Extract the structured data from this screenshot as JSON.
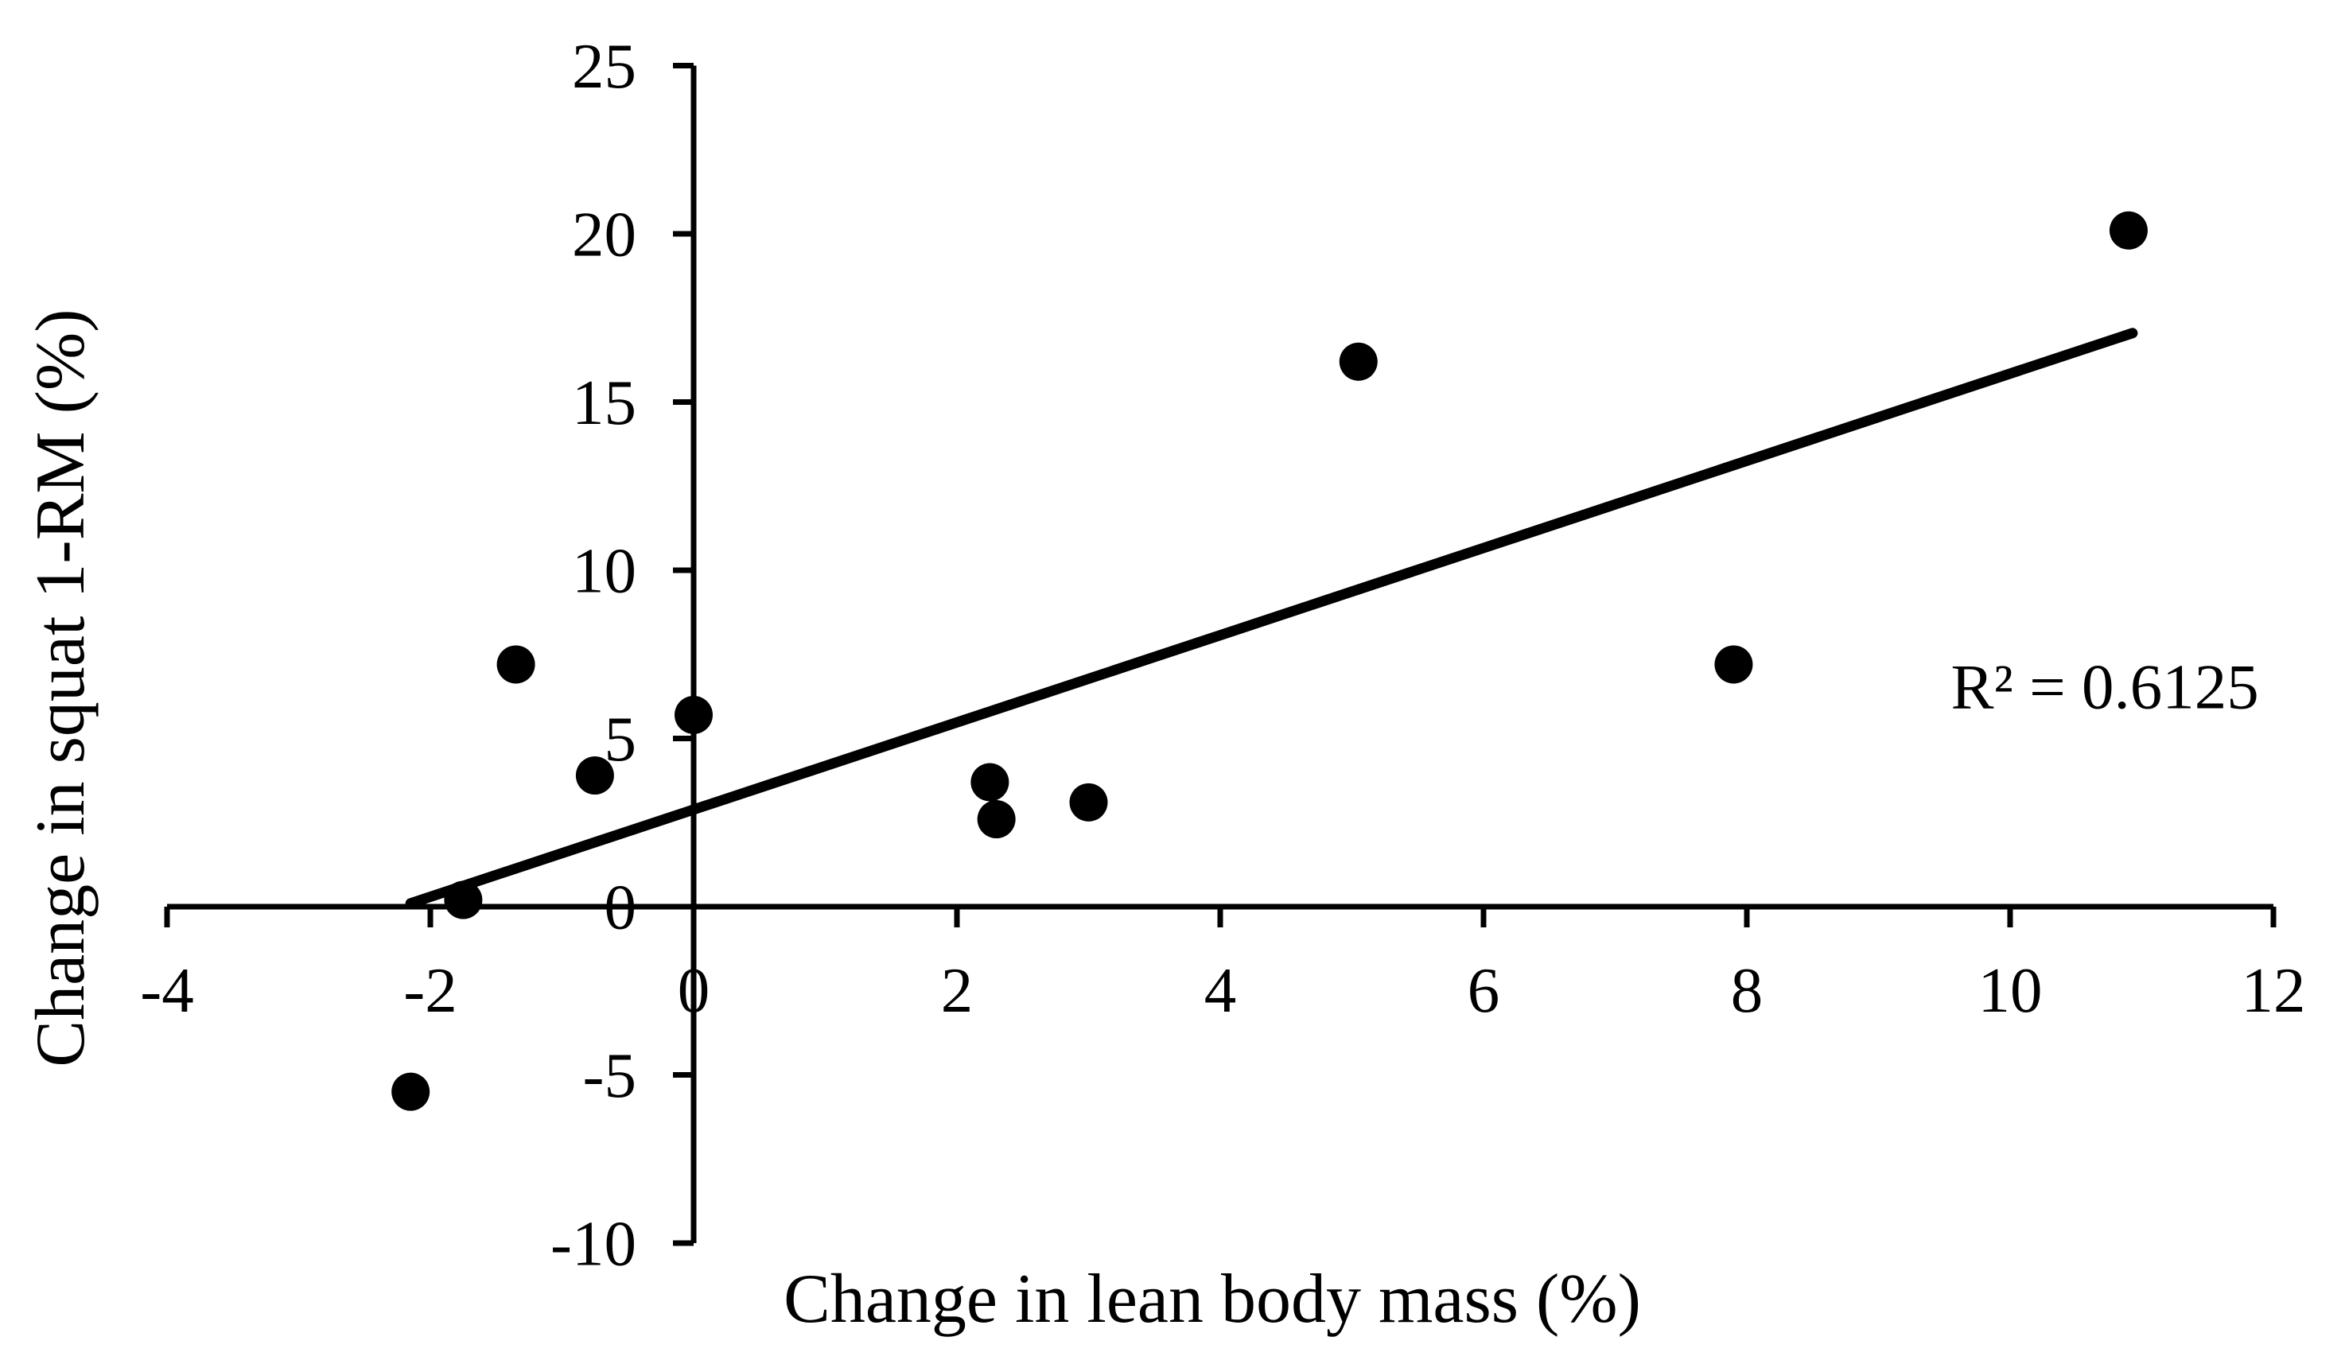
{
  "figure": {
    "background": "#ffffff",
    "ink_color": "#000000"
  },
  "chart_data": {
    "type": "scatter",
    "title": "",
    "xlabel": "Change in lean body mass (%)",
    "ylabel": "Change in squat 1-RM (%)",
    "xlim": [
      -4,
      12
    ],
    "ylim": [
      -10,
      25
    ],
    "xticks": [
      -4,
      -2,
      0,
      2,
      4,
      6,
      8,
      10,
      12
    ],
    "yticks": [
      -10,
      -5,
      0,
      5,
      10,
      15,
      20,
      25
    ],
    "grid": false,
    "legend_position": "none",
    "marker": {
      "shape": "circle",
      "color": "#000000"
    },
    "points": [
      {
        "x": -2.15,
        "y": -5.5
      },
      {
        "x": -1.75,
        "y": 0.2
      },
      {
        "x": -1.35,
        "y": 7.2
      },
      {
        "x": -0.75,
        "y": 3.9
      },
      {
        "x": 0.0,
        "y": 5.7
      },
      {
        "x": 2.25,
        "y": 3.7
      },
      {
        "x": 2.3,
        "y": 2.6
      },
      {
        "x": 3.0,
        "y": 3.1
      },
      {
        "x": 5.05,
        "y": 16.2
      },
      {
        "x": 7.9,
        "y": 7.2
      },
      {
        "x": 10.9,
        "y": 20.1
      }
    ],
    "trendline": {
      "type": "linear",
      "x_start": -2.15,
      "y_start": 0.1,
      "x_end": 10.93,
      "y_end": 17.05,
      "color": "#000000"
    },
    "annotation": {
      "text": "R² = 0.6125",
      "x": 9.55,
      "y": 5.9
    }
  }
}
